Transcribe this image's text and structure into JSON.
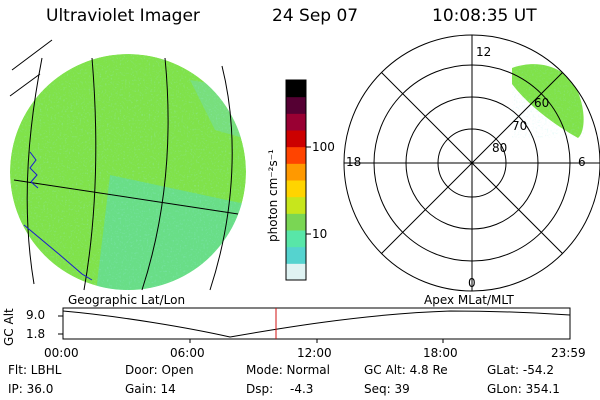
{
  "header": {
    "instrument": "Ultraviolet Imager",
    "date": "24 Sep 07",
    "time": "10:08:35 UT"
  },
  "colorbar": {
    "unit_label": "photon cm⁻²s⁻¹",
    "ticks": [
      "100",
      "10"
    ],
    "scale": "log",
    "colors": [
      "#dff3f3",
      "#55d3cf",
      "#58e6a8",
      "#7ad654",
      "#c7e61c",
      "#ffd400",
      "#ff9900",
      "#ff4400",
      "#cc0000",
      "#990033",
      "#550033",
      "#000000"
    ]
  },
  "polar_plot": {
    "mlt_labels": {
      "top": "12",
      "bottom": "0",
      "left": "18",
      "right": "6"
    },
    "lat_labels": [
      "60",
      "70",
      "80"
    ]
  },
  "image_labels": {
    "left": "Geographic Lat/Lon",
    "right": "Apex MLat/MLT"
  },
  "timeline": {
    "ylabel": "GC Alt",
    "y_ticks": [
      "9.0",
      "1.8"
    ],
    "x_ticks": [
      "00:00",
      "06:00",
      "12:00",
      "18:00",
      "23:59"
    ],
    "marker_color": "#d01010"
  },
  "status": {
    "flt": "Flt: LBHL",
    "ip": "IP: 36.0",
    "door": "Door: Open",
    "gain": "Gain: 14",
    "mode": "Mode: Normal",
    "dsp_label": "Dsp:",
    "dsp_value": "-4.3",
    "gc_alt": "GC Alt: 4.8 Re",
    "seq": "Seq: 39",
    "glat": "GLat: -54.2",
    "glon": "GLon: 354.1"
  },
  "colors": {
    "emission_main": "#80e24a",
    "emission_low": "#55d8c8"
  }
}
